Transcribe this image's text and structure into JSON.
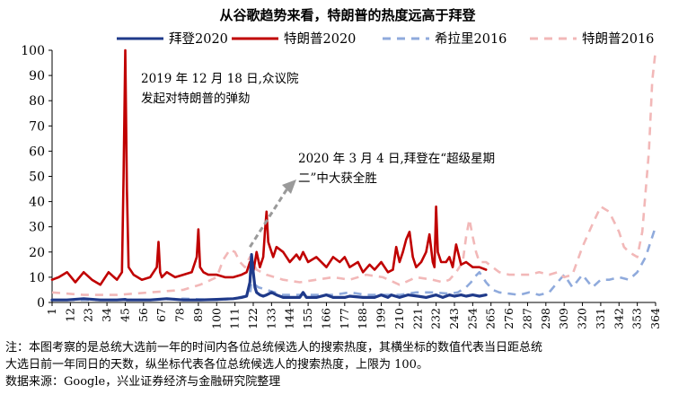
{
  "chart_data": {
    "type": "line",
    "title": "从谷歌趋势来看，特朗普的热度远高于拜登",
    "xlabel": "",
    "ylabel": "",
    "ylim": [
      0,
      100
    ],
    "yticks": [
      0,
      10,
      20,
      30,
      40,
      50,
      60,
      70,
      80,
      90,
      100
    ],
    "xlim": [
      1,
      364
    ],
    "xticks": [
      1,
      12,
      23,
      34,
      45,
      56,
      67,
      78,
      89,
      100,
      111,
      122,
      133,
      144,
      155,
      166,
      177,
      188,
      199,
      210,
      221,
      232,
      243,
      254,
      265,
      276,
      287,
      298,
      309,
      320,
      331,
      342,
      353,
      364
    ],
    "grid": false,
    "legend_position": "top",
    "series": [
      {
        "name": "拜登2020",
        "color": "#1f3a8a",
        "style": "solid",
        "x": [
          1,
          10,
          20,
          30,
          40,
          45,
          46,
          50,
          60,
          70,
          80,
          90,
          100,
          110,
          115,
          118,
          120,
          121,
          122,
          123,
          124,
          126,
          128,
          130,
          133,
          136,
          140,
          144,
          150,
          152,
          154,
          160,
          166,
          170,
          177,
          180,
          188,
          195,
          199,
          203,
          205,
          210,
          215,
          221,
          226,
          232,
          236,
          240,
          243,
          247,
          250,
          254,
          258,
          262
        ],
        "y": [
          1,
          1,
          1.5,
          1,
          1,
          1.2,
          1,
          1,
          1,
          1.5,
          1,
          1,
          1.2,
          1.5,
          2,
          2.5,
          8,
          19,
          12,
          6,
          4,
          3,
          2.5,
          3,
          4,
          3,
          2,
          2,
          2,
          4,
          2,
          2,
          3,
          2,
          2,
          2.5,
          2,
          2,
          3,
          2,
          3,
          2,
          3,
          2.5,
          2,
          3,
          2,
          3,
          2.5,
          3,
          2.5,
          3,
          2.5,
          3
        ]
      },
      {
        "name": "特朗普2020",
        "color": "#c00000",
        "style": "solid",
        "x": [
          1,
          5,
          10,
          15,
          20,
          25,
          30,
          35,
          40,
          43,
          44,
          45,
          46,
          47,
          50,
          55,
          60,
          64,
          65,
          66,
          67,
          70,
          75,
          80,
          85,
          88,
          89,
          90,
          92,
          95,
          100,
          105,
          110,
          115,
          118,
          120,
          122,
          124,
          126,
          128,
          129,
          130,
          131,
          132,
          134,
          136,
          140,
          144,
          148,
          150,
          152,
          155,
          160,
          166,
          170,
          174,
          177,
          180,
          185,
          188,
          192,
          195,
          199,
          203,
          206,
          208,
          210,
          212,
          214,
          216,
          218,
          220,
          223,
          226,
          228,
          230,
          231,
          232,
          233,
          235,
          238,
          240,
          242,
          244,
          247,
          250,
          254,
          258,
          262
        ],
        "y": [
          9,
          10,
          12,
          8,
          12,
          9,
          7,
          12,
          9,
          12,
          50,
          100,
          45,
          14,
          11,
          9,
          10,
          14,
          24,
          12,
          10,
          12,
          10,
          11,
          12,
          18,
          29,
          14,
          12,
          11,
          11,
          10,
          10,
          11,
          12,
          16,
          12,
          20,
          14,
          18,
          28,
          36,
          24,
          22,
          18,
          22,
          20,
          16,
          19,
          17,
          20,
          16,
          18,
          14,
          18,
          16,
          18,
          14,
          16,
          12,
          15,
          13,
          16,
          12,
          13,
          22,
          16,
          20,
          25,
          28,
          18,
          14,
          16,
          20,
          27,
          16,
          14,
          38,
          20,
          16,
          16,
          18,
          14,
          23,
          15,
          16,
          14,
          14,
          13
        ]
      },
      {
        "name": "希拉里2016",
        "color": "#8faadc",
        "style": "dashed",
        "x": [
          1,
          20,
          40,
          60,
          80,
          100,
          110,
          120,
          121,
          125,
          130,
          140,
          150,
          160,
          170,
          180,
          190,
          200,
          210,
          220,
          230,
          240,
          245,
          250,
          253,
          255,
          258,
          262,
          266,
          270,
          276,
          282,
          288,
          294,
          300,
          305,
          309,
          314,
          320,
          326,
          331,
          336,
          342,
          348,
          353,
          358,
          362,
          364
        ],
        "y": [
          1,
          1,
          1,
          1,
          1.5,
          1,
          1.5,
          3,
          8,
          6,
          5,
          3,
          3,
          3,
          3,
          4,
          3,
          3,
          3,
          4,
          4,
          3.5,
          4,
          6,
          8,
          10,
          12,
          8,
          5,
          4,
          3.5,
          3,
          4,
          3,
          4,
          8,
          11,
          6,
          11,
          6,
          9,
          9,
          10,
          9,
          12,
          18,
          26,
          30
        ]
      },
      {
        "name": "特朗普2016",
        "color": "#f2b8b8",
        "style": "dashed",
        "x": [
          1,
          20,
          40,
          60,
          80,
          90,
          100,
          104,
          108,
          111,
          114,
          117,
          120,
          124,
          130,
          140,
          150,
          160,
          170,
          180,
          190,
          200,
          210,
          220,
          230,
          236,
          240,
          244,
          248,
          250,
          252,
          254,
          256,
          258,
          262,
          266,
          270,
          276,
          282,
          288,
          294,
          300,
          305,
          309,
          314,
          320,
          326,
          331,
          336,
          342,
          345,
          348,
          353,
          356,
          360,
          362,
          364
        ],
        "y": [
          4,
          3,
          3,
          4,
          5,
          7,
          10,
          17,
          21,
          20,
          16,
          14,
          18,
          13,
          11,
          9,
          8,
          9,
          10,
          9,
          11,
          10,
          7,
          10,
          9,
          8,
          9,
          12,
          16,
          26,
          33,
          26,
          20,
          16,
          16,
          14,
          12,
          11,
          11,
          11,
          12,
          11,
          12,
          10,
          11,
          22,
          31,
          38,
          36,
          28,
          22,
          20,
          18,
          28,
          60,
          88,
          100
        ]
      }
    ],
    "annotations": [
      {
        "lines": [
          "2019 年 12 月 18 日,众议院",
          "发起对特朗普的弹劾"
        ]
      },
      {
        "lines": [
          "2020 年 3 月 4 日,拜登在“超级星期",
          "二”中大获全胜"
        ]
      }
    ]
  },
  "footer": {
    "note_line1": "注：本图考察的是总统大选前一年的时间内各位总统候选人的搜索热度，其横坐标的数值代表当日距总统",
    "note_line2": "大选日前一年同日的天数，纵坐标代表各位总统候选人的搜索热度，上限为 100。",
    "source": "数据来源：Google，兴业证券经济与金融研究院整理"
  }
}
